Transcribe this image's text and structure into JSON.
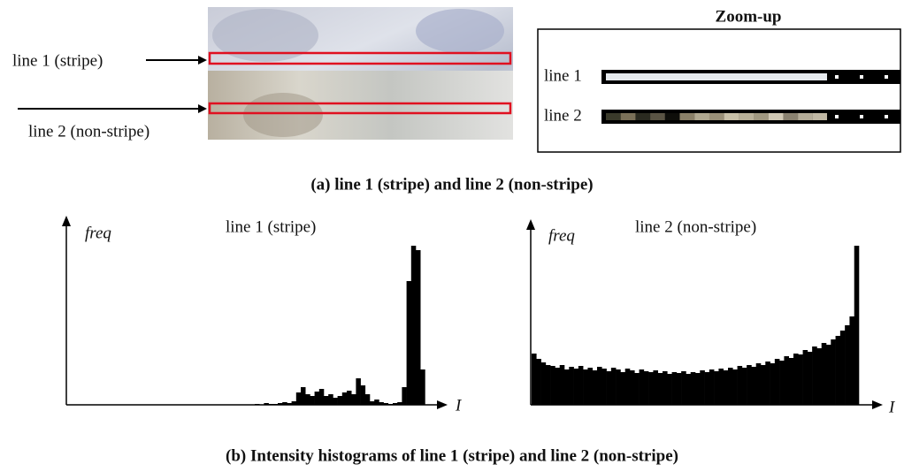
{
  "panel_a": {
    "line1_label": "line 1 (stripe)",
    "line2_label": "line 2 (non-stripe)",
    "zoom_title": "Zoom-up",
    "zoom_line1": "line 1",
    "zoom_line2": "line 2",
    "caption": "(a) line 1 (stripe) and line 2 (non-stripe)"
  },
  "panel_b": {
    "hist1": {
      "title": "line 1 (stripe)",
      "y_label": "freq",
      "x_label": "I",
      "values": [
        0,
        0,
        0,
        0,
        0,
        0,
        0,
        0,
        0,
        0,
        0,
        0,
        0,
        0,
        0,
        0,
        0,
        0,
        0,
        0,
        0,
        0,
        0,
        0,
        0,
        0,
        0,
        0,
        0,
        0,
        0,
        0,
        0,
        0,
        0,
        0,
        0,
        0,
        0,
        0,
        1,
        0,
        2,
        1,
        1,
        2,
        3,
        2,
        4,
        14,
        20,
        12,
        10,
        15,
        18,
        10,
        12,
        8,
        10,
        14,
        16,
        12,
        30,
        22,
        12,
        4,
        6,
        3,
        2,
        1,
        2,
        3,
        20,
        140,
        180,
        175,
        40,
        0,
        0,
        0
      ]
    },
    "hist2": {
      "title": "line 2 (non-stripe)",
      "y_label": "freq",
      "x_label": "I",
      "values": [
        58,
        52,
        48,
        45,
        44,
        42,
        45,
        40,
        43,
        41,
        44,
        40,
        42,
        39,
        43,
        41,
        38,
        42,
        40,
        37,
        41,
        39,
        36,
        40,
        38,
        37,
        39,
        36,
        38,
        35,
        37,
        36,
        38,
        35,
        37,
        36,
        39,
        37,
        40,
        38,
        41,
        39,
        42,
        40,
        44,
        42,
        45,
        43,
        47,
        45,
        49,
        47,
        52,
        50,
        55,
        53,
        58,
        57,
        62,
        60,
        66,
        64,
        70,
        68,
        74,
        78,
        84,
        90,
        100,
        180
      ]
    },
    "caption": "(b) Intensity histograms of line 1 (stripe) and line 2 (non-stripe)"
  }
}
